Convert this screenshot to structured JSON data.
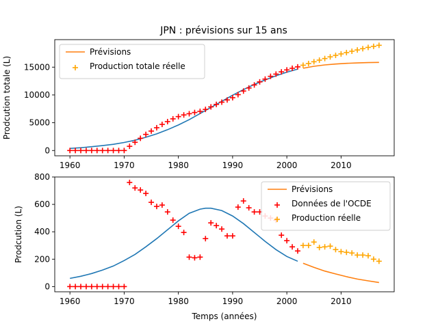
{
  "figure": {
    "title": "JPN : prévisions sur 15 ans"
  },
  "colors": {
    "fit_curve": "#1f77b4",
    "forecast_curve": "#ff7f0e",
    "oecd_data": "#ff0000",
    "real_production": "#ffa500"
  },
  "chart_data": [
    {
      "type": "line",
      "title": "JPN : prévisions sur 15 ans",
      "xlabel": "",
      "ylabel": "Prodcution totale (L)",
      "xlim": [
        1957.2,
        2019.8
      ],
      "ylim": [
        -950,
        19950
      ],
      "xticks": [
        1960,
        1970,
        1980,
        1990,
        2000,
        2010
      ],
      "yticks": [
        0,
        5000,
        10000,
        15000
      ],
      "grid": false,
      "legend": "top-left",
      "series": [
        {
          "kind": "line",
          "legend": false,
          "color_key": "fit_curve",
          "x": [
            1960,
            1962,
            1964,
            1966,
            1968,
            1970,
            1972,
            1974,
            1976,
            1978,
            1980,
            1982,
            1984,
            1986,
            1988,
            1990,
            1992,
            1994,
            1996,
            1998,
            2000,
            2002
          ],
          "y": [
            380,
            500,
            680,
            880,
            1120,
            1450,
            1850,
            2380,
            3000,
            3750,
            4600,
            5550,
            6650,
            7750,
            8850,
            9950,
            10950,
            11900,
            12700,
            13450,
            14100,
            14650
          ]
        },
        {
          "kind": "line",
          "name": "Prévisions",
          "color_key": "forecast_curve",
          "x": [
            2003,
            2005,
            2007,
            2009,
            2011,
            2013,
            2015,
            2017
          ],
          "y": [
            14800,
            15150,
            15400,
            15560,
            15680,
            15760,
            15820,
            15860
          ]
        },
        {
          "kind": "marker",
          "legend": false,
          "color_key": "oecd_data",
          "x": [
            1960,
            1961,
            1962,
            1963,
            1964,
            1965,
            1966,
            1967,
            1968,
            1969,
            1970,
            1971,
            1972,
            1973,
            1974,
            1975,
            1976,
            1977,
            1978,
            1979,
            1980,
            1981,
            1982,
            1983,
            1984,
            1985,
            1986,
            1987,
            1988,
            1989,
            1990,
            1991,
            1992,
            1993,
            1994,
            1995,
            1996,
            1997,
            1998,
            1999,
            2000,
            2001,
            2002
          ],
          "y": [
            0,
            0,
            0,
            0,
            0,
            0,
            0,
            0,
            0,
            0,
            0,
            760,
            1480,
            2200,
            2900,
            3500,
            4100,
            4700,
            5200,
            5700,
            6100,
            6400,
            6620,
            6840,
            7050,
            7400,
            7850,
            8300,
            8700,
            9100,
            9500,
            10050,
            10700,
            11250,
            11800,
            12350,
            12850,
            13350,
            13750,
            14150,
            14500,
            14800,
            15050
          ]
        },
        {
          "kind": "marker",
          "name": "Production totale réelle",
          "color_key": "real_production",
          "x": [
            2003,
            2004,
            2005,
            2006,
            2007,
            2008,
            2009,
            2010,
            2011,
            2012,
            2013,
            2014,
            2015,
            2016,
            2017
          ],
          "y": [
            15350,
            15650,
            15970,
            16260,
            16550,
            16850,
            17120,
            17380,
            17620,
            17860,
            18090,
            18320,
            18550,
            18740,
            18930
          ]
        }
      ]
    },
    {
      "type": "line",
      "title": "",
      "xlabel": "Temps (années)",
      "ylabel": "Prodcution (L)",
      "xlim": [
        1957.2,
        2019.8
      ],
      "ylim": [
        -38,
        800
      ],
      "xticks": [
        1960,
        1970,
        1980,
        1990,
        2000,
        2010
      ],
      "yticks": [
        0,
        200,
        400,
        600,
        800
      ],
      "grid": false,
      "legend": "top-right",
      "series": [
        {
          "kind": "line",
          "legend": false,
          "color_key": "fit_curve",
          "x": [
            1960,
            1962,
            1964,
            1966,
            1968,
            1970,
            1972,
            1974,
            1976,
            1978,
            1980,
            1982,
            1984,
            1985,
            1986,
            1988,
            1990,
            1992,
            1994,
            1996,
            1998,
            2000,
            2002
          ],
          "y": [
            60,
            75,
            95,
            120,
            150,
            190,
            235,
            290,
            350,
            415,
            480,
            535,
            565,
            572,
            572,
            555,
            515,
            460,
            395,
            330,
            270,
            220,
            185
          ]
        },
        {
          "kind": "line",
          "name": "Prévisions",
          "color_key": "forecast_curve",
          "x": [
            2003,
            2005,
            2007,
            2009,
            2011,
            2013,
            2015,
            2017
          ],
          "y": [
            170,
            140,
            113,
            92,
            72,
            55,
            42,
            30
          ]
        },
        {
          "kind": "marker",
          "name": "Données de l'OCDE",
          "color_key": "oecd_data",
          "x": [
            1960,
            1961,
            1962,
            1963,
            1964,
            1965,
            1966,
            1967,
            1968,
            1969,
            1970,
            1971,
            1972,
            1973,
            1974,
            1975,
            1976,
            1977,
            1978,
            1979,
            1980,
            1981,
            1982,
            1983,
            1984,
            1985,
            1986,
            1987,
            1988,
            1989,
            1990,
            1991,
            1992,
            1993,
            1994,
            1995,
            1996,
            1997,
            1998,
            1999,
            2000,
            2001,
            2002
          ],
          "y": [
            0,
            0,
            0,
            0,
            0,
            0,
            0,
            0,
            0,
            0,
            0,
            760,
            720,
            705,
            680,
            615,
            585,
            595,
            545,
            485,
            440,
            395,
            215,
            210,
            215,
            350,
            465,
            445,
            420,
            370,
            370,
            580,
            625,
            575,
            545,
            545,
            515,
            500,
            485,
            375,
            335,
            290,
            260
          ]
        },
        {
          "kind": "marker",
          "name": "Production réelle",
          "color_key": "real_production",
          "x": [
            2003,
            2004,
            2005,
            2006,
            2007,
            2008,
            2009,
            2010,
            2011,
            2012,
            2013,
            2014,
            2015,
            2016,
            2017
          ],
          "y": [
            300,
            300,
            325,
            285,
            290,
            295,
            270,
            255,
            250,
            245,
            230,
            230,
            225,
            200,
            185
          ]
        }
      ]
    }
  ]
}
